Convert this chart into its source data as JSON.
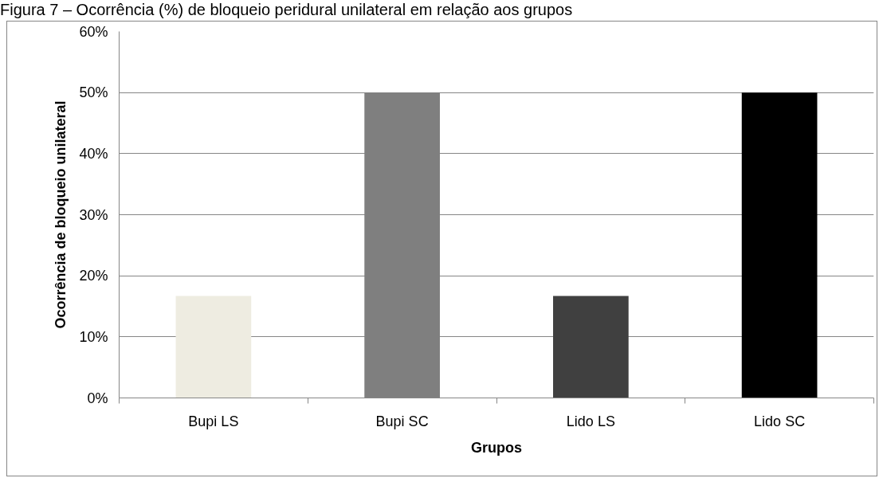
{
  "chart_data": {
    "type": "bar",
    "title": "Figura 7 – Ocorrência (%) de bloqueio peridural unilateral em relação aos grupos",
    "xlabel": "Grupos",
    "ylabel": "Ocorrência de bloqueio unilateral",
    "categories": [
      "Bupi LS",
      "Bupi SC",
      "Lido LS",
      "Lido SC"
    ],
    "values": [
      16.7,
      50,
      16.7,
      50
    ],
    "colors": [
      "#eeece1",
      "#7f7f7f",
      "#404040",
      "#000000"
    ],
    "ylim": [
      0,
      60
    ],
    "yticks": [
      {
        "value": 0,
        "label": "0%"
      },
      {
        "value": 10,
        "label": "10%"
      },
      {
        "value": 20,
        "label": "20%"
      },
      {
        "value": 30,
        "label": "30%"
      },
      {
        "value": 40,
        "label": "40%"
      },
      {
        "value": 50,
        "label": "50%"
      },
      {
        "value": 60,
        "label": "60%"
      }
    ],
    "grid": "y"
  }
}
